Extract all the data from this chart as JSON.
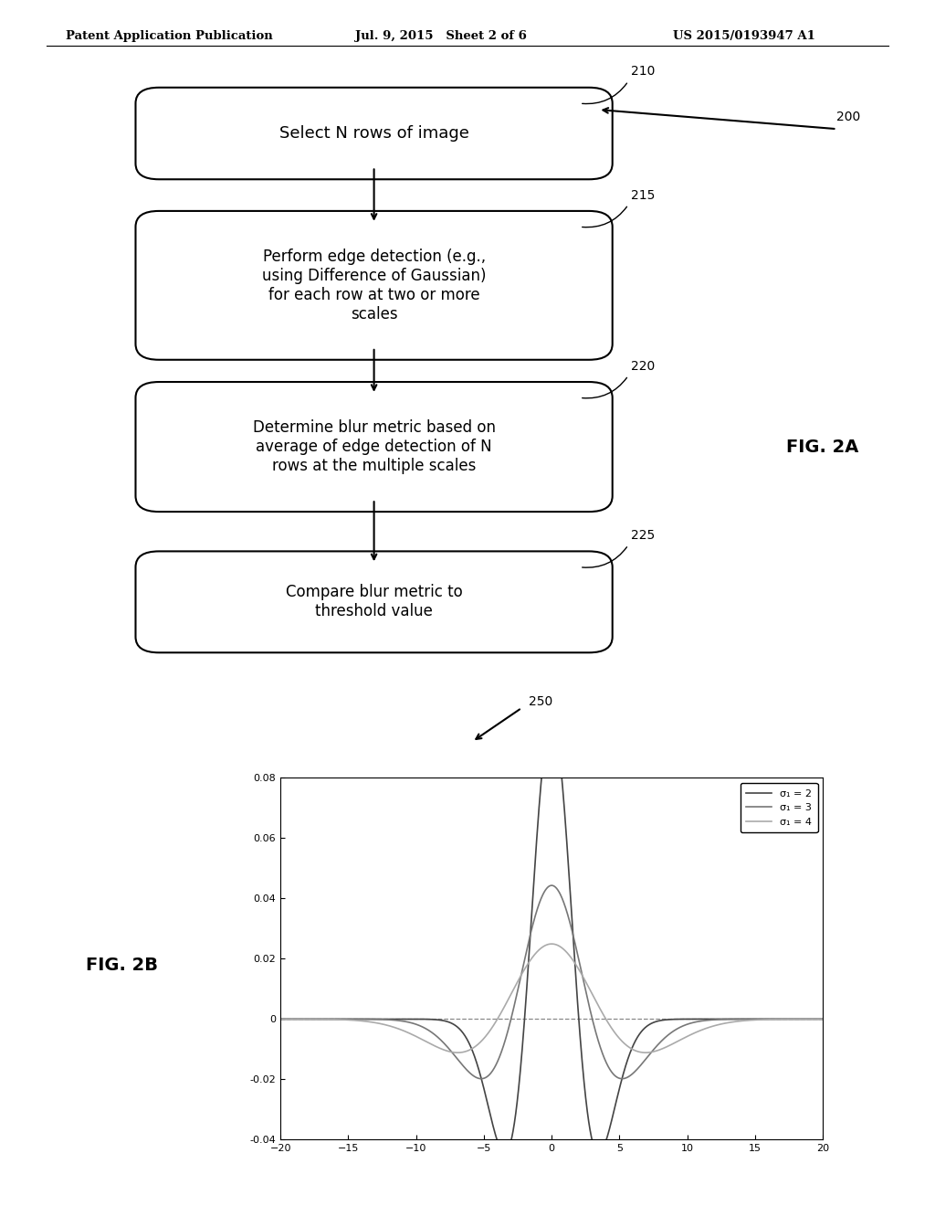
{
  "header_left": "Patent Application Publication",
  "header_center": "Jul. 9, 2015   Sheet 2 of 6",
  "header_right": "US 2015/0193947 A1",
  "fig_label_a": "FIG. 2A",
  "fig_label_b": "FIG. 2B",
  "ref_200": "200",
  "ref_210": "210",
  "ref_215": "215",
  "ref_220": "220",
  "ref_225": "225",
  "ref_250": "250",
  "box1_text": "Select N rows of image",
  "box2_text": "Perform edge detection (e.g.,\nusing Difference of Gaussian)\nfor each row at two or more\nscales",
  "box3_text": "Determine blur metric based on\naverage of edge detection of N\nrows at the multiple scales",
  "box4_text": "Compare blur metric to\nthreshold value",
  "legend_labels": [
    "σ₁ = 2",
    "σ₁ = 3",
    "σ₁ = 4"
  ],
  "legend_colors": [
    "#444444",
    "#777777",
    "#aaaaaa"
  ],
  "plot_xlim": [
    -20,
    20
  ],
  "plot_ylim": [
    -0.04,
    0.08
  ],
  "plot_yticks": [
    -0.04,
    -0.02,
    0,
    0.02,
    0.04,
    0.06,
    0.08
  ],
  "plot_xticks": [
    -20,
    -15,
    -10,
    -5,
    0,
    5,
    10,
    15,
    20
  ],
  "background_color": "#ffffff"
}
